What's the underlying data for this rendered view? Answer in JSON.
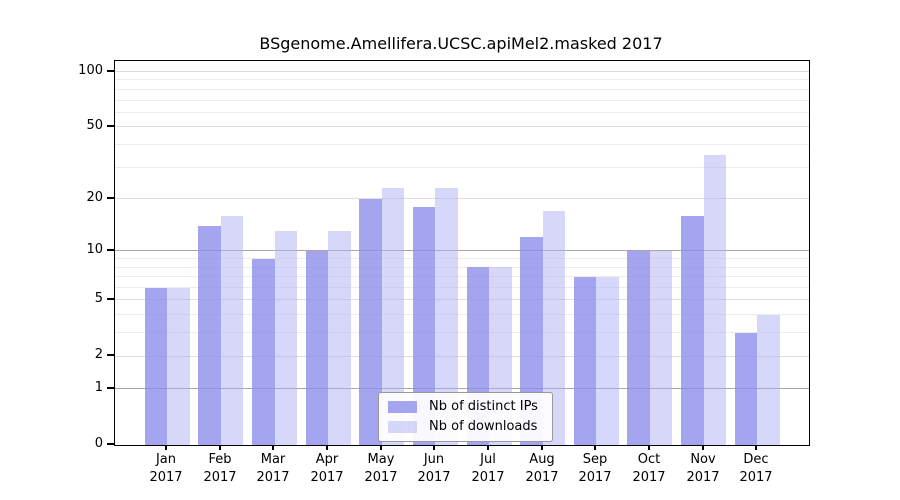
{
  "title": "BSgenome.Amellifera.UCSC.apiMel2.masked 2017",
  "chart_data": {
    "type": "bar",
    "categories": [
      "Jan",
      "Feb",
      "Mar",
      "Apr",
      "May",
      "Jun",
      "Jul",
      "Aug",
      "Sep",
      "Oct",
      "Nov",
      "Dec"
    ],
    "x_sublabel_year": "2017",
    "series": [
      {
        "name": "Nb of distinct IPs",
        "values": [
          6,
          14,
          9,
          10,
          20,
          18,
          8,
          12,
          7,
          10,
          16,
          3
        ],
        "color": "rgba(143,143,235,0.8)"
      },
      {
        "name": "Nb of downloads",
        "values": [
          6,
          16,
          13,
          13,
          23,
          23,
          8,
          17,
          7,
          10,
          35,
          4
        ],
        "color": "rgba(176,176,243,0.5)"
      }
    ],
    "yscale": "log10(1+v)",
    "ylim": [
      0,
      114
    ],
    "y_ticks": [
      0,
      1,
      2,
      5,
      10,
      20,
      50,
      100
    ],
    "y_minor_ticks": [
      3,
      4,
      6,
      7,
      8,
      9,
      30,
      40,
      60,
      70,
      80,
      90
    ],
    "grid": "on",
    "legend_position": "bottom-center",
    "colors": {
      "grid_major": "#a6a6a6",
      "grid_mid": "#dedede",
      "grid_minor": "#ececec",
      "axis": "#000000",
      "text": "#000000"
    }
  }
}
